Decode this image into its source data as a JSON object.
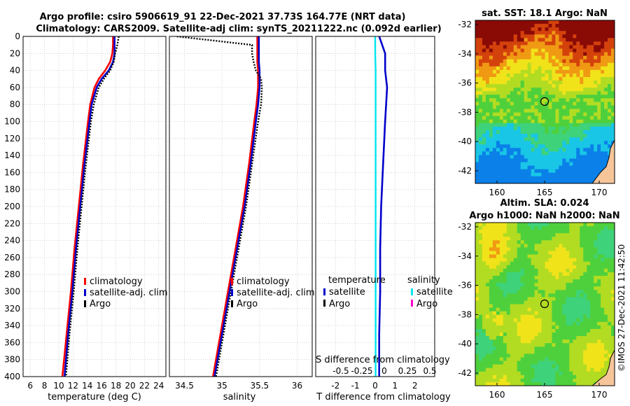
{
  "title": {
    "line1": "Argo profile: csiro 5906619_91 22-Dec-2021 37.73S 164.77E (NRT data)",
    "line2": "Climatology: CARS2009. Satellite-adj clim: synTS_20211222.nc (0.092d earlier)"
  },
  "depth_ticks": [
    0,
    20,
    40,
    60,
    80,
    100,
    120,
    140,
    160,
    180,
    200,
    220,
    240,
    260,
    280,
    300,
    320,
    340,
    360,
    380,
    400
  ],
  "colors": {
    "climatology": "#ff0000",
    "satellite": "#0000cc",
    "argo": "#000000",
    "sat_salinity": "#00e5ee",
    "argo_salinity": "#ff00cc"
  },
  "legend": {
    "climatology": "climatology",
    "satellite_adj": "satellite-adj. clim",
    "argo": "Argo",
    "temperature_title": "temperature",
    "salinity_title": "salinity",
    "satellite": "satellite"
  },
  "maps": {
    "sst_title": "sat. SST: 18.1 Argo: NaN",
    "sla_title_1": "Altim. SLA: 0.024",
    "sla_title_2": "Argo h1000: NaN h2000: NaN",
    "lat_ticks": [
      "-32",
      "-34",
      "-36",
      "-38",
      "-40",
      "-42"
    ],
    "lon_ticks": [
      "160",
      "165",
      "170"
    ]
  },
  "footer": "©IMOS 27-Dec-2021 11:42:50",
  "chart_data": [
    {
      "type": "line",
      "name": "temperature-profile",
      "xlabel": "temperature (deg C)",
      "ylabel": "",
      "xlim": [
        5,
        25
      ],
      "ylim": [
        400,
        0
      ],
      "x_ticks": [
        6,
        8,
        10,
        12,
        14,
        16,
        18,
        20,
        22,
        24
      ],
      "depth": [
        0,
        10,
        20,
        30,
        40,
        50,
        60,
        80,
        100,
        150,
        200,
        250,
        300,
        350,
        400
      ],
      "series": [
        {
          "name": "climatology",
          "values": [
            17.6,
            17.6,
            17.5,
            17.2,
            16.5,
            15.6,
            15.0,
            14.4,
            14.1,
            13.4,
            12.8,
            12.2,
            11.7,
            11.1,
            10.5
          ]
        },
        {
          "name": "satellite-adj. clim",
          "values": [
            17.8,
            17.8,
            17.8,
            17.6,
            17.0,
            16.0,
            15.3,
            14.6,
            14.3,
            13.6,
            13.0,
            12.4,
            11.9,
            11.3,
            10.8
          ]
        },
        {
          "name": "Argo",
          "values": [
            18.4,
            18.2,
            17.9,
            17.7,
            17.2,
            16.3,
            15.6,
            14.9,
            14.5,
            13.8,
            13.2,
            12.6,
            12.1,
            11.5,
            11.0
          ]
        }
      ]
    },
    {
      "type": "line",
      "name": "salinity-profile",
      "xlabel": "salinity",
      "xlim": [
        34.3,
        36.2
      ],
      "ylim": [
        400,
        0
      ],
      "x_ticks": [
        34.5,
        35,
        35.5,
        36
      ],
      "depth": [
        0,
        10,
        20,
        30,
        40,
        50,
        60,
        80,
        100,
        150,
        200,
        250,
        300,
        350,
        400
      ],
      "series": [
        {
          "name": "climatology",
          "values": [
            35.47,
            35.47,
            35.47,
            35.47,
            35.48,
            35.48,
            35.48,
            35.46,
            35.43,
            35.36,
            35.28,
            35.18,
            35.08,
            34.98,
            34.88
          ]
        },
        {
          "name": "satellite-adj. clim",
          "values": [
            35.49,
            35.49,
            35.49,
            35.49,
            35.5,
            35.5,
            35.5,
            35.48,
            35.45,
            35.38,
            35.3,
            35.2,
            35.1,
            35.0,
            34.9
          ]
        },
        {
          "name": "Argo",
          "values": [
            34.4,
            35.4,
            35.4,
            35.42,
            35.45,
            35.52,
            35.53,
            35.52,
            35.48,
            35.4,
            35.32,
            35.22,
            35.12,
            35.02,
            34.92
          ]
        }
      ]
    },
    {
      "type": "line",
      "name": "difference-profile",
      "xlabel": "T difference from climatology",
      "xlabel_top": "S difference from climatology",
      "xlim": [
        -3,
        3
      ],
      "ylim": [
        400,
        0
      ],
      "x_ticks": [
        -2,
        -1,
        0,
        1,
        2
      ],
      "x_ticks_top": [
        "-0.5",
        "-0.25",
        "0",
        "0.25",
        "0.5"
      ],
      "depth": [
        0,
        20,
        40,
        60,
        80,
        100,
        150,
        200,
        250,
        300,
        350,
        400
      ],
      "series": [
        {
          "name": "temperature satellite",
          "values": [
            0.2,
            0.5,
            0.5,
            0.6,
            0.55,
            0.5,
            0.4,
            0.3,
            0.25,
            0.25,
            0.2,
            0.2
          ]
        },
        {
          "name": "salinity satellite",
          "values": [
            0.0,
            0.0,
            0.02,
            0.02,
            0.02,
            0.02,
            0.02,
            0.02,
            0.02,
            0.02,
            0.02,
            0.02
          ]
        }
      ]
    }
  ]
}
